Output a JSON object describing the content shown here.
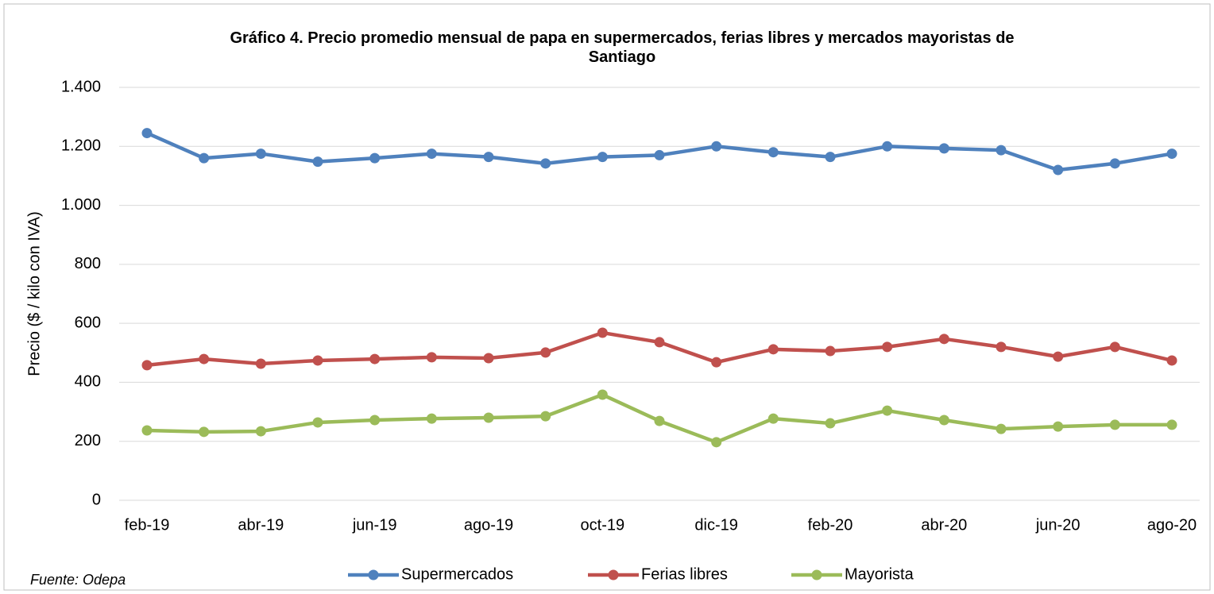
{
  "chart_data": {
    "type": "line",
    "title": "Gráfico 4. Precio promedio mensual de papa en supermercados, ferias libres y mercados mayoristas de Santiago",
    "y_label": "Precio ($ / kilo con IVA)",
    "source": "Fuente: Odepa",
    "categories": [
      "feb-19",
      null,
      "abr-19",
      null,
      "jun-19",
      null,
      "ago-19",
      null,
      "oct-19",
      null,
      "dic-19",
      null,
      "feb-20",
      null,
      "abr-20",
      null,
      "jun-20",
      null,
      "ago-20"
    ],
    "series": [
      {
        "name": "Supermercados",
        "color": "#4f81bd",
        "values": [
          1245,
          1160,
          1175,
          1148,
          1160,
          1175,
          1164,
          1142,
          1164,
          1170,
          1200,
          1180,
          1164,
          1200,
          1193,
          1187,
          1120,
          1142,
          1175
        ]
      },
      {
        "name": "Ferias libres",
        "color": "#c0504d",
        "values": [
          458,
          479,
          463,
          474,
          479,
          485,
          482,
          501,
          568,
          536,
          468,
          512,
          506,
          520,
          547,
          520,
          487,
          520,
          474
        ]
      },
      {
        "name": "Mayorista",
        "color": "#9bbb59",
        "values": [
          237,
          232,
          234,
          264,
          272,
          277,
          280,
          285,
          358,
          269,
          197,
          277,
          261,
          304,
          272,
          242,
          250,
          256,
          256
        ]
      }
    ],
    "ylim": [
      0,
      1400
    ],
    "yticks": [
      0,
      200,
      400,
      600,
      800,
      {
        "value": 1000,
        "label": "1.000"
      },
      {
        "value": 1200,
        "label": "1.200"
      },
      {
        "value": 1400,
        "label": "1.400"
      }
    ],
    "grid": true,
    "legend": "bottom"
  }
}
